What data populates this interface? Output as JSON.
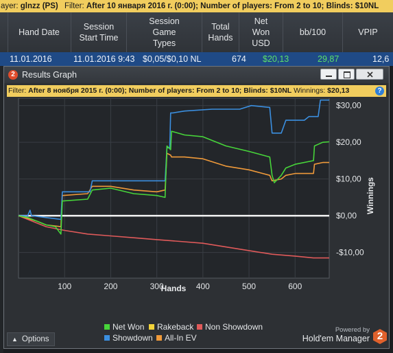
{
  "topbar": {
    "player_label": "ayer:",
    "player": "glnzz (PS)",
    "filter_label": "Filter:",
    "filter": "After 10 января 2016 г. (0:00); Number of players: From 2 to 10; Blinds: $10NL"
  },
  "table": {
    "headers": [
      "Hand Date",
      "Session\nStart Time",
      "Session\nGame\nTypes",
      "Total\nHands",
      "Net\nWon\nUSD",
      "bb/100",
      "VPIP"
    ],
    "row": [
      "11.01.2016",
      "11.01.2016 9:43",
      "$0,05/$0,10 NL",
      "674",
      "$20,13",
      "29,87",
      "12,6"
    ]
  },
  "window": {
    "title": "Results Graph",
    "filter_label": "Filter:",
    "filter": "After 8 ноября 2015 г. (0:00); Number of players: From 2 to 10; Blinds: $10NL",
    "winnings_label": "Winnings:",
    "winnings": "$20,13",
    "help": "?"
  },
  "footer": {
    "powered_by": "Powered by",
    "brand": "Hold'em Manager",
    "brand_logo": "2",
    "options": "Options"
  },
  "chart_data": {
    "type": "line",
    "xlabel": "Hands",
    "ylabel": "Winnings",
    "xlim": [
      0,
      674
    ],
    "ylim": [
      -17,
      32
    ],
    "x_ticks": [
      100,
      200,
      300,
      400,
      500,
      600
    ],
    "y_ticks": [
      30,
      20,
      10,
      0,
      -10
    ],
    "y_tick_labels": [
      "$30,00",
      "$20,00",
      "$10,00",
      "$0,00",
      "-$10,00"
    ],
    "grid": true,
    "legend_position": "bottom",
    "series": [
      {
        "name": "Net Won",
        "color": "#47d53a",
        "points": [
          [
            0,
            0
          ],
          [
            20,
            -0.5
          ],
          [
            40,
            -1.5
          ],
          [
            60,
            -2.5
          ],
          [
            80,
            -3
          ],
          [
            92,
            -5
          ],
          [
            95,
            4
          ],
          [
            150,
            4.5
          ],
          [
            160,
            7
          ],
          [
            200,
            7.5
          ],
          [
            250,
            6
          ],
          [
            300,
            5.5
          ],
          [
            318,
            5
          ],
          [
            322,
            19
          ],
          [
            330,
            18
          ],
          [
            332,
            23
          ],
          [
            360,
            22
          ],
          [
            400,
            21.5
          ],
          [
            450,
            19
          ],
          [
            500,
            17.5
          ],
          [
            545,
            16
          ],
          [
            550,
            11
          ],
          [
            555,
            9
          ],
          [
            570,
            11
          ],
          [
            580,
            13
          ],
          [
            600,
            14
          ],
          [
            640,
            15
          ],
          [
            642,
            19
          ],
          [
            660,
            20
          ],
          [
            674,
            20.13
          ]
        ]
      },
      {
        "name": "Rakeback",
        "color": "#f2d33a",
        "points": [
          [
            0,
            0
          ],
          [
            674,
            0
          ]
        ]
      },
      {
        "name": "Non Showdown",
        "color": "#e05a5a",
        "points": [
          [
            0,
            0
          ],
          [
            30,
            -1.5
          ],
          [
            60,
            -3
          ],
          [
            100,
            -4
          ],
          [
            150,
            -5
          ],
          [
            200,
            -5.5
          ],
          [
            250,
            -6
          ],
          [
            300,
            -6.5
          ],
          [
            350,
            -7
          ],
          [
            400,
            -7.5
          ],
          [
            450,
            -8.5
          ],
          [
            500,
            -9.5
          ],
          [
            550,
            -10.5
          ],
          [
            600,
            -11
          ],
          [
            640,
            -11.5
          ],
          [
            674,
            -11.5
          ]
        ]
      },
      {
        "name": "Showdown",
        "color": "#3b8fe0",
        "points": [
          [
            0,
            0
          ],
          [
            20,
            0
          ],
          [
            25,
            1.5
          ],
          [
            28,
            0
          ],
          [
            60,
            -0.5
          ],
          [
            92,
            -1
          ],
          [
            95,
            6.5
          ],
          [
            155,
            6.5
          ],
          [
            160,
            9.5
          ],
          [
            200,
            9.5
          ],
          [
            300,
            9.5
          ],
          [
            318,
            9.5
          ],
          [
            322,
            18.5
          ],
          [
            328,
            18.5
          ],
          [
            330,
            28
          ],
          [
            335,
            28
          ],
          [
            360,
            28.5
          ],
          [
            420,
            29
          ],
          [
            480,
            29
          ],
          [
            505,
            30
          ],
          [
            545,
            29.5
          ],
          [
            550,
            22.5
          ],
          [
            570,
            22.5
          ],
          [
            580,
            26
          ],
          [
            620,
            26
          ],
          [
            630,
            27
          ],
          [
            650,
            27
          ],
          [
            655,
            31.5
          ],
          [
            674,
            31.5
          ]
        ]
      },
      {
        "name": "All-In EV",
        "color": "#f09a3a",
        "points": [
          [
            0,
            0
          ],
          [
            40,
            -1.5
          ],
          [
            60,
            -2.5
          ],
          [
            92,
            -3
          ],
          [
            95,
            5.5
          ],
          [
            150,
            6
          ],
          [
            160,
            8
          ],
          [
            200,
            8
          ],
          [
            250,
            7
          ],
          [
            300,
            6.5
          ],
          [
            318,
            7
          ],
          [
            322,
            17
          ],
          [
            330,
            16.5
          ],
          [
            332,
            16
          ],
          [
            360,
            16
          ],
          [
            400,
            15.5
          ],
          [
            450,
            13.5
          ],
          [
            500,
            12.5
          ],
          [
            545,
            11
          ],
          [
            550,
            9.5
          ],
          [
            570,
            10
          ],
          [
            580,
            11
          ],
          [
            600,
            11.5
          ],
          [
            640,
            11.5
          ],
          [
            642,
            14
          ],
          [
            660,
            14.5
          ],
          [
            674,
            14.5
          ]
        ]
      }
    ]
  }
}
